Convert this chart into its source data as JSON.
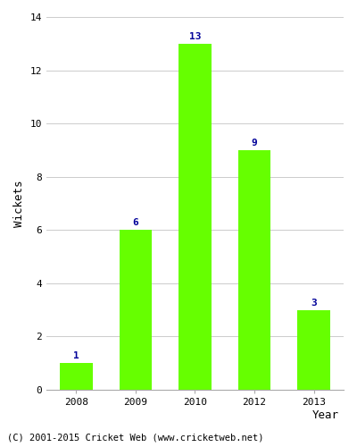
{
  "categories": [
    "2008",
    "2009",
    "2010",
    "2012",
    "2013"
  ],
  "values": [
    1,
    6,
    13,
    9,
    3
  ],
  "bar_color": "#66ff00",
  "ylabel": "Wickets",
  "xlabel": "Year",
  "ylim": [
    0,
    14
  ],
  "yticks": [
    0,
    2,
    4,
    6,
    8,
    10,
    12,
    14
  ],
  "label_color": "#000099",
  "label_fontsize": 8,
  "tick_fontsize": 8,
  "axis_label_fontsize": 9,
  "grid_color": "#cccccc",
  "background_color": "#ffffff",
  "footnote": "(C) 2001-2015 Cricket Web (www.cricketweb.net)",
  "footnote_fontsize": 7.5
}
